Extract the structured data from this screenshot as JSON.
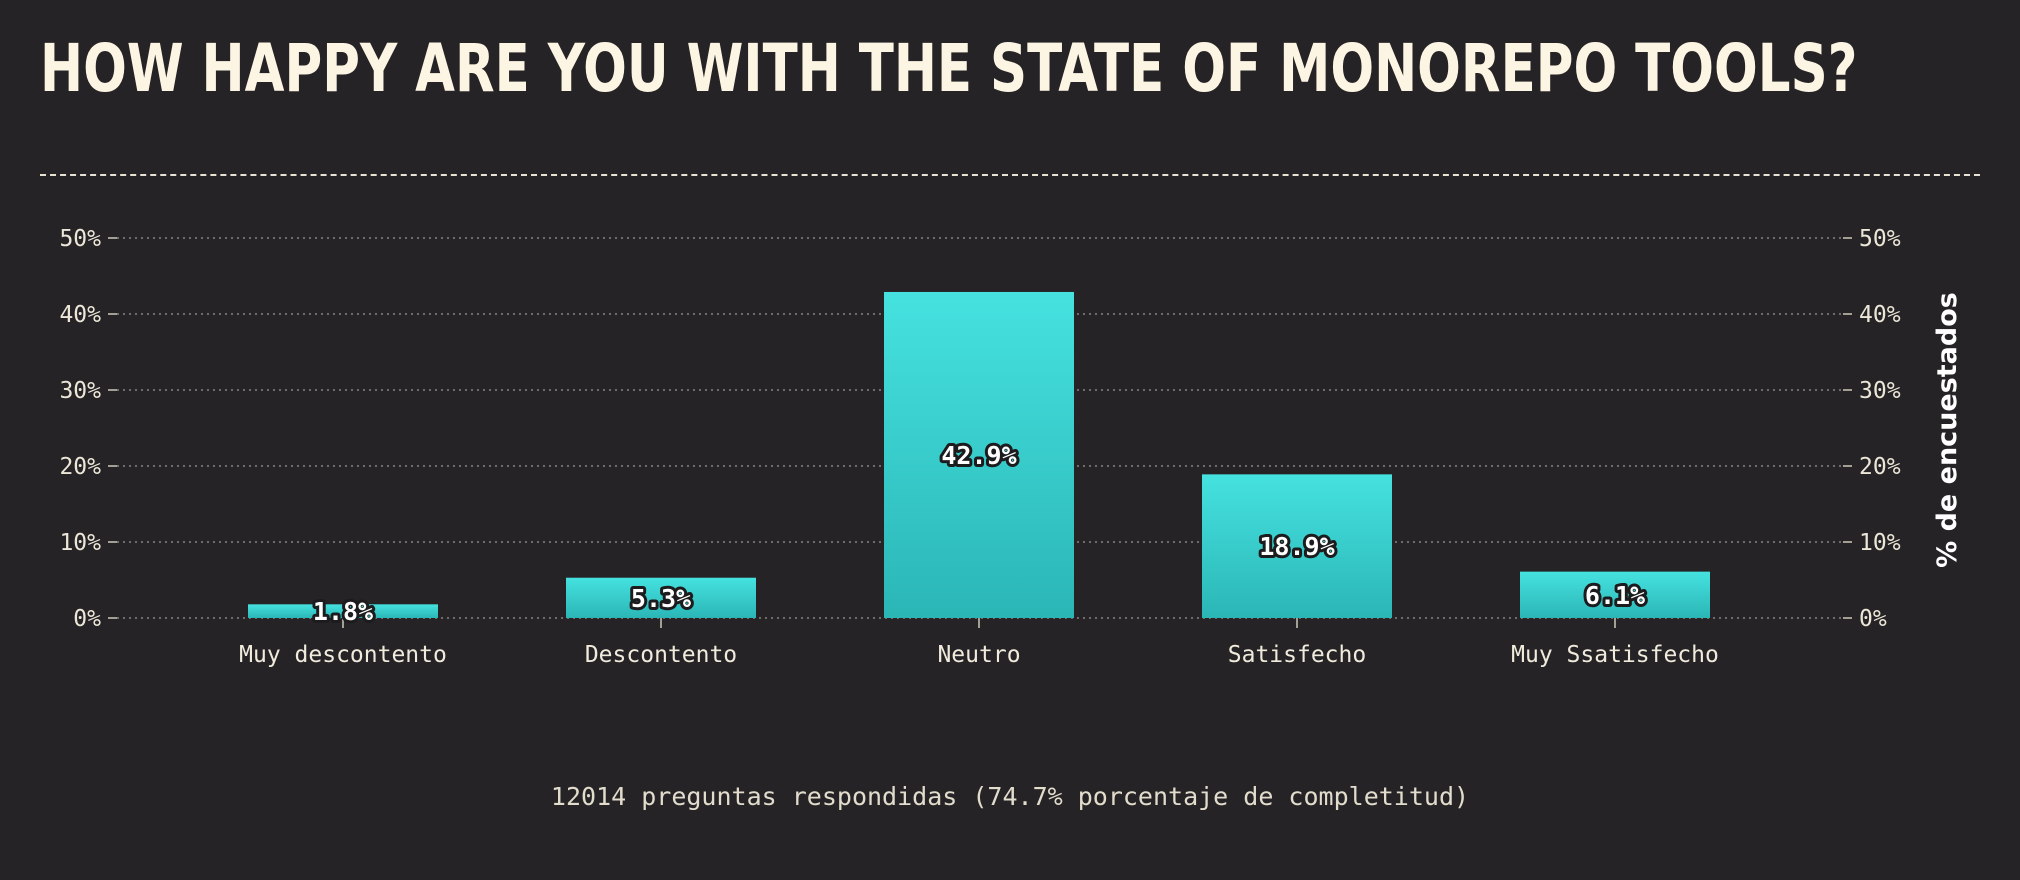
{
  "colors": {
    "background": "#252325",
    "bar_top": "#45e2e0",
    "bar_bottom": "#2bb6b6",
    "text": "#fdf5e4",
    "grid": "#8a8580"
  },
  "chart_data": {
    "type": "bar",
    "title": "HOW HAPPY ARE YOU WITH THE STATE OF MONOREPO TOOLS?",
    "categories": [
      "Muy descontento",
      "Descontento",
      "Neutro",
      "Satisfecho",
      "Muy Ssatisfecho"
    ],
    "values": [
      1.8,
      5.3,
      42.9,
      18.9,
      6.1
    ],
    "value_labels": [
      "1.8%",
      "5.3%",
      "42.9%",
      "18.9%",
      "6.1%"
    ],
    "ylabel": "% de encuestados",
    "ylim": [
      0,
      50
    ],
    "y_ticks": [
      "0%",
      "10%",
      "20%",
      "30%",
      "40%",
      "50%"
    ],
    "grid": true,
    "footer": "12014 preguntas respondidas (74.7% porcentaje de completitud)"
  }
}
